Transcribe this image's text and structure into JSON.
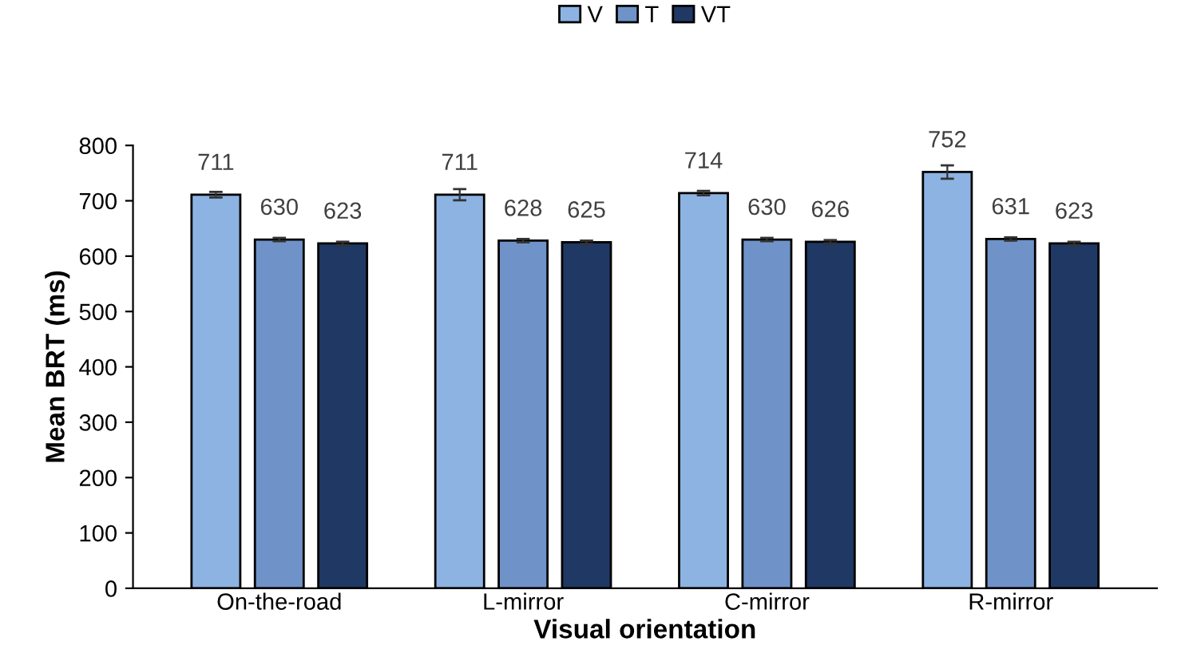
{
  "chart_data": {
    "type": "bar",
    "xlabel": "Visual orientation",
    "ylabel": "Mean BRT (ms)",
    "categories": [
      "On-the-road",
      "L-mirror",
      "C-mirror",
      "R-mirror"
    ],
    "series": [
      {
        "name": "V",
        "color": "#8db3e2",
        "values": [
          711,
          711,
          714,
          752
        ],
        "errors": [
          5,
          10,
          4,
          12
        ]
      },
      {
        "name": "T",
        "color": "#6f93c8",
        "values": [
          630,
          628,
          630,
          631
        ],
        "errors": [
          3,
          3,
          3,
          3
        ]
      },
      {
        "name": "VT",
        "color": "#1f3864",
        "values": [
          623,
          625,
          626,
          623
        ],
        "errors": [
          3,
          3,
          3,
          3
        ]
      }
    ],
    "ylim": [
      0,
      800
    ],
    "yticks": [
      0,
      100,
      200,
      300,
      400,
      500,
      600,
      700,
      800
    ],
    "data_labels": true,
    "grid": false,
    "legend": "top"
  }
}
